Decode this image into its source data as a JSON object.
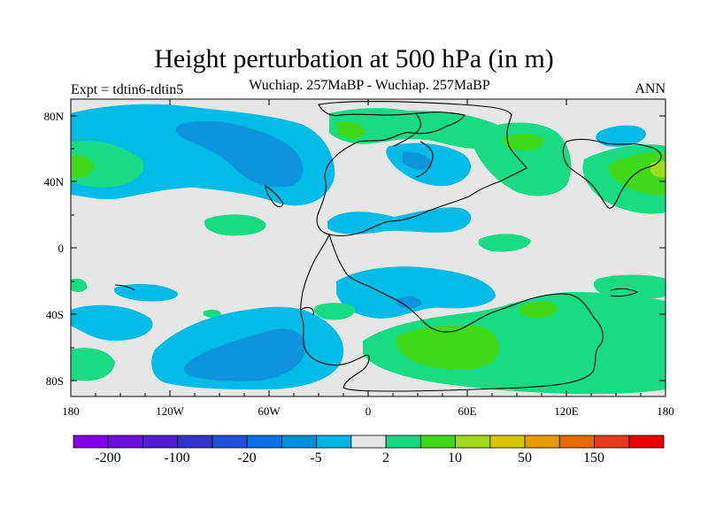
{
  "title": "Height perturbation at 500 hPa (in m)",
  "subtitle": "Wuchiap. 257MaBP - Wuchiap. 257MaBP",
  "left_label": "Expt = tdtin6-tdtin5",
  "right_label": "ANN",
  "x_ticks": [
    "180",
    "120W",
    "60W",
    "0",
    "60E",
    "120E",
    "180"
  ],
  "y_ticks": [
    "80N",
    "40N",
    "0",
    "40S",
    "80S"
  ],
  "colorbar": {
    "colors": [
      "#8400e6",
      "#6a0fdd",
      "#4e1dd4",
      "#3333cc",
      "#1f52d9",
      "#0b70e6",
      "#0090dd",
      "#00b3e6",
      "#e6e6e6",
      "#17d982",
      "#40d91a",
      "#9ed91a",
      "#d9c400",
      "#e69b00",
      "#e66a00",
      "#e63c1a",
      "#e60000"
    ],
    "labels": [
      "-200",
      "-100",
      "-20",
      "-5",
      "2",
      "10",
      "50",
      "150"
    ]
  },
  "colors": {
    "background": "#e6e6e6",
    "light_blue": "#00bce6",
    "mid_blue": "#0d94dc",
    "light_green": "#19db84",
    "green": "#40d91a",
    "yellow_green": "#a0dc1a"
  }
}
